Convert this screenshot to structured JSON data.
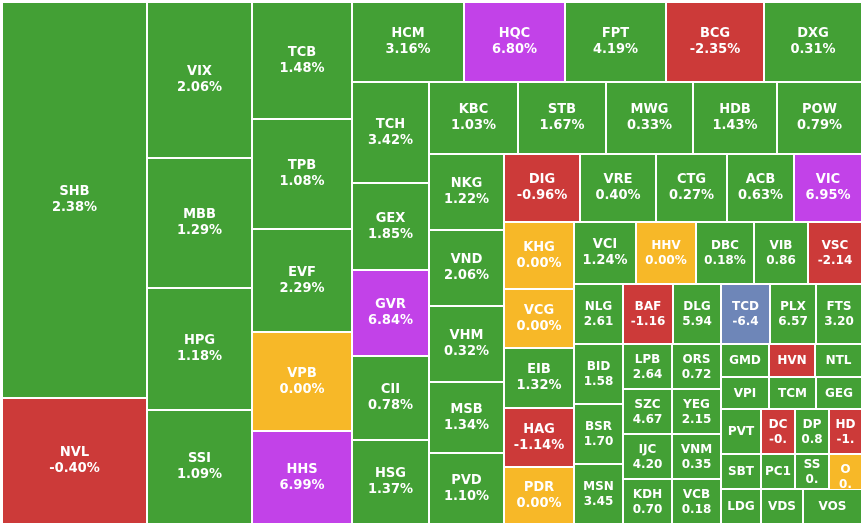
{
  "colors": {
    "up": "#43a035",
    "down": "#cc3a39",
    "flat": "#f7b828",
    "ceiling": "#c242e8",
    "floor": "#6e86b8"
  },
  "chart_data": {
    "type": "treemap",
    "title": "",
    "tiles": [
      {
        "symbol": "SHB",
        "change": "2.38%",
        "status": "up"
      },
      {
        "symbol": "NVL",
        "change": "-0.40%",
        "status": "down"
      },
      {
        "symbol": "VIX",
        "change": "2.06%",
        "status": "up"
      },
      {
        "symbol": "MBB",
        "change": "1.29%",
        "status": "up"
      },
      {
        "symbol": "HPG",
        "change": "1.18%",
        "status": "up"
      },
      {
        "symbol": "SSI",
        "change": "1.09%",
        "status": "up"
      },
      {
        "symbol": "TCB",
        "change": "1.48%",
        "status": "up"
      },
      {
        "symbol": "TPB",
        "change": "1.08%",
        "status": "up"
      },
      {
        "symbol": "EVF",
        "change": "2.29%",
        "status": "up"
      },
      {
        "symbol": "VPB",
        "change": "0.00%",
        "status": "flat"
      },
      {
        "symbol": "HHS",
        "change": "6.99%",
        "status": "ceiling"
      },
      {
        "symbol": "HCM",
        "change": "3.16%",
        "status": "up"
      },
      {
        "symbol": "HQC",
        "change": "6.80%",
        "status": "ceiling"
      },
      {
        "symbol": "FPT",
        "change": "4.19%",
        "status": "up"
      },
      {
        "symbol": "BCG",
        "change": "-2.35%",
        "status": "down"
      },
      {
        "symbol": "DXG",
        "change": "0.31%",
        "status": "up"
      },
      {
        "symbol": "TCH",
        "change": "3.42%",
        "status": "up"
      },
      {
        "symbol": "GEX",
        "change": "1.85%",
        "status": "up"
      },
      {
        "symbol": "GVR",
        "change": "6.84%",
        "status": "ceiling"
      },
      {
        "symbol": "CII",
        "change": "0.78%",
        "status": "up"
      },
      {
        "symbol": "HSG",
        "change": "1.37%",
        "status": "up"
      },
      {
        "symbol": "KBC",
        "change": "1.03%",
        "status": "up"
      },
      {
        "symbol": "STB",
        "change": "1.67%",
        "status": "up"
      },
      {
        "symbol": "MWG",
        "change": "0.33%",
        "status": "up"
      },
      {
        "symbol": "HDB",
        "change": "1.43%",
        "status": "up"
      },
      {
        "symbol": "POW",
        "change": "0.79%",
        "status": "up"
      },
      {
        "symbol": "NKG",
        "change": "1.22%",
        "status": "up"
      },
      {
        "symbol": "VND",
        "change": "2.06%",
        "status": "up"
      },
      {
        "symbol": "VHM",
        "change": "0.32%",
        "status": "up"
      },
      {
        "symbol": "MSB",
        "change": "1.34%",
        "status": "up"
      },
      {
        "symbol": "PVD",
        "change": "1.10%",
        "status": "up"
      },
      {
        "symbol": "DIG",
        "change": "-0.96%",
        "status": "down"
      },
      {
        "symbol": "VRE",
        "change": "0.40%",
        "status": "up"
      },
      {
        "symbol": "CTG",
        "change": "0.27%",
        "status": "up"
      },
      {
        "symbol": "ACB",
        "change": "0.63%",
        "status": "up"
      },
      {
        "symbol": "VIC",
        "change": "6.95%",
        "status": "ceiling"
      },
      {
        "symbol": "KHG",
        "change": "0.00%",
        "status": "flat"
      },
      {
        "symbol": "VCG",
        "change": "0.00%",
        "status": "flat"
      },
      {
        "symbol": "EIB",
        "change": "1.32%",
        "status": "up"
      },
      {
        "symbol": "HAG",
        "change": "-1.14%",
        "status": "down"
      },
      {
        "symbol": "PDR",
        "change": "0.00%",
        "status": "flat"
      },
      {
        "symbol": "VCI",
        "change": "1.24%",
        "status": "up"
      },
      {
        "symbol": "HHV",
        "change": "0.00%",
        "status": "flat"
      },
      {
        "symbol": "DBC",
        "change": "0.18%",
        "status": "up"
      },
      {
        "symbol": "VIB",
        "change": "0.86",
        "status": "up"
      },
      {
        "symbol": "VSC",
        "change": "-2.14",
        "status": "down"
      },
      {
        "symbol": "NLG",
        "change": "2.61",
        "status": "up"
      },
      {
        "symbol": "BAF",
        "change": "-1.16",
        "status": "down"
      },
      {
        "symbol": "DLG",
        "change": "5.94",
        "status": "up"
      },
      {
        "symbol": "TCD",
        "change": "-6.4",
        "status": "floor"
      },
      {
        "symbol": "PLX",
        "change": "6.57",
        "status": "up"
      },
      {
        "symbol": "FTS",
        "change": "3.20",
        "status": "up"
      },
      {
        "symbol": "BID",
        "change": "1.58",
        "status": "up"
      },
      {
        "symbol": "LPB",
        "change": "2.64",
        "status": "up"
      },
      {
        "symbol": "ORS",
        "change": "0.72",
        "status": "up"
      },
      {
        "symbol": "GMD",
        "change": "",
        "status": "up"
      },
      {
        "symbol": "HVN",
        "change": "",
        "status": "down"
      },
      {
        "symbol": "NTL",
        "change": "",
        "status": "up"
      },
      {
        "symbol": "SZC",
        "change": "4.67",
        "status": "up"
      },
      {
        "symbol": "YEG",
        "change": "2.15",
        "status": "up"
      },
      {
        "symbol": "VPI",
        "change": "",
        "status": "up"
      },
      {
        "symbol": "TCM",
        "change": "",
        "status": "up"
      },
      {
        "symbol": "GEG",
        "change": "",
        "status": "up"
      },
      {
        "symbol": "BSR",
        "change": "1.70",
        "status": "up"
      },
      {
        "symbol": "IJC",
        "change": "4.20",
        "status": "up"
      },
      {
        "symbol": "VNM",
        "change": "0.35",
        "status": "up"
      },
      {
        "symbol": "PVT",
        "change": "",
        "status": "up"
      },
      {
        "symbol": "DC",
        "change": "-0.",
        "status": "down"
      },
      {
        "symbol": "DP",
        "change": "0.8",
        "status": "up"
      },
      {
        "symbol": "HD",
        "change": "-1.",
        "status": "down"
      },
      {
        "symbol": "MSN",
        "change": "3.45",
        "status": "up"
      },
      {
        "symbol": "KDH",
        "change": "0.70",
        "status": "up"
      },
      {
        "symbol": "VCB",
        "change": "0.18",
        "status": "up"
      },
      {
        "symbol": "SBT",
        "change": "",
        "status": "up"
      },
      {
        "symbol": "PC1",
        "change": "",
        "status": "up"
      },
      {
        "symbol": "SS",
        "change": "0.",
        "status": "up"
      },
      {
        "symbol": "O",
        "change": "0.",
        "status": "flat"
      },
      {
        "symbol": "LDG",
        "change": "",
        "status": "up"
      },
      {
        "symbol": "VDS",
        "change": "",
        "status": "up"
      },
      {
        "symbol": "VOS",
        "change": "",
        "status": "up"
      }
    ]
  }
}
